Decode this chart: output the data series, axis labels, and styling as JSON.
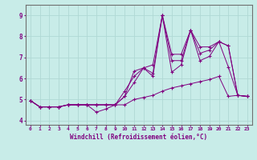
{
  "xlabel": "Windchill (Refroidissement éolien,°C)",
  "background_color": "#c8ece8",
  "grid_color": "#b0d8d4",
  "line_color": "#800080",
  "xlim": [
    -0.5,
    23.5
  ],
  "ylim": [
    3.8,
    9.5
  ],
  "xticks": [
    0,
    1,
    2,
    3,
    4,
    5,
    6,
    7,
    8,
    9,
    10,
    11,
    12,
    13,
    14,
    15,
    16,
    17,
    18,
    19,
    20,
    21,
    22,
    23
  ],
  "yticks": [
    4,
    5,
    6,
    7,
    8,
    9
  ],
  "series": [
    [
      4.95,
      4.65,
      4.65,
      4.65,
      4.75,
      4.75,
      4.75,
      4.4,
      4.55,
      4.75,
      5.15,
      6.35,
      6.5,
      6.25,
      9.0,
      6.3,
      6.65,
      8.3,
      6.85,
      7.05,
      7.75,
      6.55,
      5.2,
      5.15
    ],
    [
      4.95,
      4.65,
      4.65,
      4.65,
      4.75,
      4.75,
      4.75,
      4.75,
      4.75,
      4.75,
      4.75,
      5.0,
      5.1,
      5.2,
      5.4,
      5.55,
      5.65,
      5.75,
      5.85,
      5.95,
      6.1,
      5.15,
      5.2,
      5.15
    ],
    [
      4.95,
      4.65,
      4.65,
      4.65,
      4.75,
      4.75,
      4.75,
      4.75,
      4.75,
      4.75,
      5.15,
      5.8,
      6.5,
      6.1,
      9.0,
      7.15,
      7.15,
      8.3,
      7.2,
      7.35,
      7.75,
      7.55,
      5.2,
      5.15
    ],
    [
      4.95,
      4.65,
      4.65,
      4.65,
      4.75,
      4.75,
      4.75,
      4.75,
      4.75,
      4.75,
      5.4,
      6.1,
      6.5,
      6.65,
      9.0,
      6.85,
      6.85,
      8.3,
      7.5,
      7.5,
      7.75,
      7.55,
      5.2,
      5.15
    ]
  ]
}
